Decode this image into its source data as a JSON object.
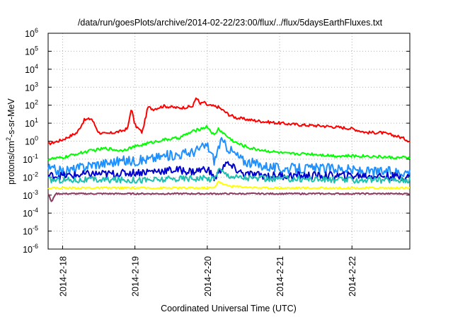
{
  "chart_data": {
    "type": "line",
    "title": "/data/run/goesPlots/archive/2014-02-22/23:00/flux/../flux/5daysEarthFluxes.txt",
    "xlabel": "Coordinated Universal Time (UTC)",
    "ylabel": {
      "prefix": "protons/cm",
      "sup": "2",
      "suffix": "-s-sr-MeV"
    },
    "x_range": [
      "2014-02-18 00:00",
      "2014-02-23 00:00"
    ],
    "x_ticks": [
      "2014-2-18",
      "2014-2-19",
      "2014-2-20",
      "2014-2-21",
      "2014-2-22"
    ],
    "y_scale": "log",
    "ylim": [
      1e-06,
      1000000.0
    ],
    "y_ticks": [
      {
        "base": "10",
        "exp": "6"
      },
      {
        "base": "10",
        "exp": "5"
      },
      {
        "base": "10",
        "exp": "4"
      },
      {
        "base": "10",
        "exp": "3"
      },
      {
        "base": "10",
        "exp": "2"
      },
      {
        "base": "10",
        "exp": "1"
      },
      {
        "base": "10",
        "exp": "0"
      },
      {
        "base": "10",
        "exp": "-1"
      },
      {
        "base": "10",
        "exp": "-2"
      },
      {
        "base": "10",
        "exp": "-3"
      },
      {
        "base": "10",
        "exp": "-4"
      },
      {
        "base": "10",
        "exp": "-5"
      },
      {
        "base": "10",
        "exp": "-6"
      }
    ],
    "grid": true,
    "series": [
      {
        "color": "#ff0000",
        "x_days": [
          0,
          0.2,
          0.4,
          0.5,
          0.6,
          0.7,
          0.8,
          1.0,
          1.1,
          1.15,
          1.2,
          1.3,
          1.38,
          1.45,
          1.6,
          1.8,
          2.0,
          2.05,
          2.1,
          2.15,
          2.2,
          2.35,
          2.5,
          2.6,
          2.8,
          3.0,
          3.2,
          3.5,
          3.8,
          4.0,
          4.2,
          4.4,
          4.6,
          4.8,
          4.9,
          5.0
        ],
        "y": [
          0.7,
          1.2,
          3,
          15,
          18,
          3,
          2.5,
          3.5,
          5,
          70,
          8,
          3,
          80,
          60,
          90,
          70,
          85,
          300,
          110,
          150,
          100,
          80,
          30,
          20,
          15,
          12,
          10,
          8,
          7,
          6,
          5,
          3,
          3,
          2,
          1.5,
          1.0
        ]
      },
      {
        "color": "#00ff00",
        "x_days": [
          0,
          0.2,
          0.4,
          0.6,
          0.8,
          1.0,
          1.2,
          1.4,
          1.6,
          1.8,
          2.0,
          2.2,
          2.3,
          2.35,
          2.5,
          2.6,
          2.8,
          3.0,
          3.3,
          3.6,
          4.0,
          4.4,
          4.8,
          5.0
        ],
        "y": [
          0.1,
          0.12,
          0.2,
          0.3,
          0.4,
          0.3,
          0.5,
          0.8,
          1.2,
          1.5,
          3.5,
          6.5,
          2.0,
          5.0,
          1.5,
          0.8,
          0.4,
          0.3,
          0.2,
          0.2,
          0.15,
          0.15,
          0.12,
          0.12
        ]
      },
      {
        "color": "#1e90ff",
        "x_days": [
          0,
          0.2,
          0.4,
          0.6,
          0.8,
          1.0,
          1.2,
          1.4,
          1.6,
          1.8,
          2.0,
          2.2,
          2.3,
          2.38,
          2.45,
          2.55,
          2.7,
          2.9,
          3.2,
          3.6,
          4.0,
          4.4,
          4.8,
          5.0
        ],
        "y": [
          0.03,
          0.02,
          0.03,
          0.05,
          0.06,
          0.08,
          0.08,
          0.1,
          0.15,
          0.18,
          0.25,
          0.6,
          0.08,
          1.0,
          0.6,
          0.25,
          0.08,
          0.05,
          0.03,
          0.03,
          0.03,
          0.02,
          0.02,
          0.02
        ]
      },
      {
        "color": "#0000cd",
        "x_days": [
          0,
          0.3,
          0.6,
          0.9,
          1.2,
          1.5,
          1.8,
          2.0,
          2.2,
          2.3,
          2.45,
          2.7,
          3.0,
          3.5,
          4.0,
          4.5,
          5.0
        ],
        "y": [
          0.012,
          0.012,
          0.015,
          0.015,
          0.018,
          0.022,
          0.025,
          0.02,
          0.03,
          0.008,
          0.06,
          0.015,
          0.012,
          0.012,
          0.012,
          0.012,
          0.01
        ]
      },
      {
        "color": "#20c0b0",
        "x_days": [
          0,
          0.5,
          1.0,
          1.5,
          2.0,
          2.3,
          2.35,
          2.45,
          2.6,
          3.0,
          3.5,
          4.0,
          4.5,
          5.0
        ],
        "y": [
          0.007,
          0.007,
          0.007,
          0.007,
          0.009,
          0.008,
          0.03,
          0.015,
          0.01,
          0.008,
          0.008,
          0.007,
          0.007,
          0.007
        ]
      },
      {
        "color": "#ffff00",
        "x_days": [
          0,
          0.5,
          1.0,
          1.5,
          2.0,
          2.3,
          2.35,
          2.45,
          2.6,
          3.0,
          3.5,
          4.0,
          4.5,
          5.0
        ],
        "y": [
          0.0025,
          0.0025,
          0.0025,
          0.0025,
          0.0025,
          0.0025,
          0.006,
          0.0035,
          0.003,
          0.0025,
          0.0025,
          0.0025,
          0.0025,
          0.0025
        ]
      },
      {
        "color": "#8b3a62",
        "x_days": [
          0,
          0.05,
          0.1,
          0.5,
          1.0,
          1.5,
          2.0,
          2.5,
          3.0,
          3.5,
          4.0,
          4.5,
          5.0
        ],
        "y": [
          0.0012,
          0.0004,
          0.0012,
          0.0012,
          0.0012,
          0.0012,
          0.0012,
          0.0012,
          0.0012,
          0.0012,
          0.0012,
          0.0012,
          0.0012
        ]
      }
    ]
  }
}
